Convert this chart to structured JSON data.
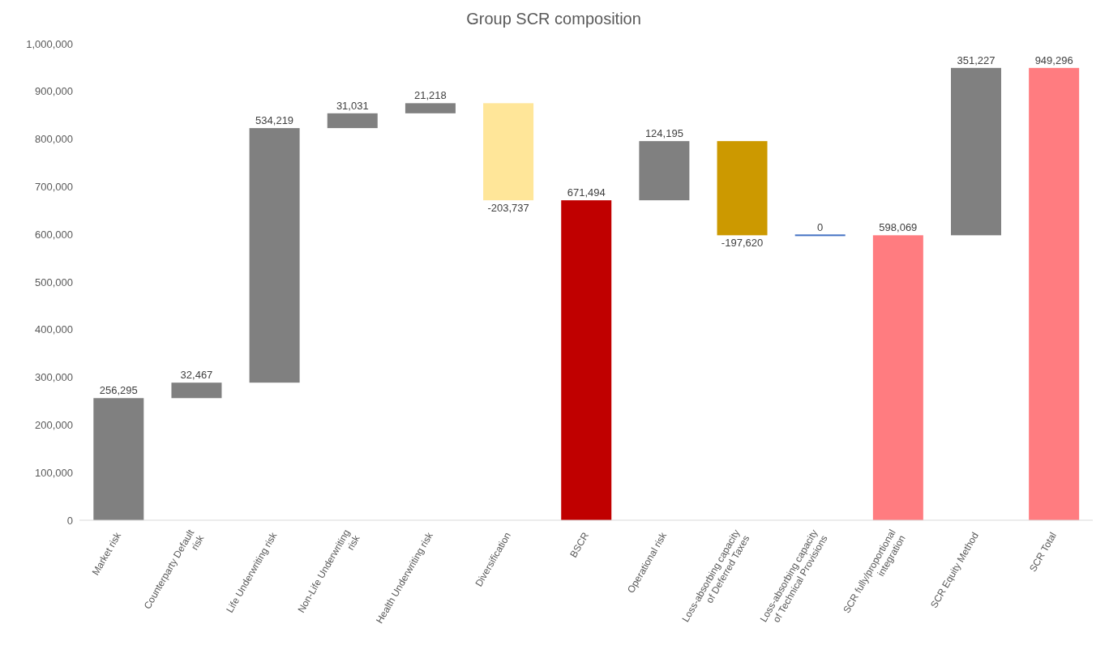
{
  "chart_data": {
    "type": "bar",
    "title": "Group SCR composition",
    "categories": [
      "Market risk",
      "Counterparty Default risk",
      "Life Underwriting risk",
      "Non-Life Underwriting risk",
      "Health Underwriting risk",
      "Diversification",
      "BSCR",
      "Operational risk",
      "Loss-absorbing capacity of Deferred Taxes",
      "Loss-absorbing capacity of Technical Provisions",
      "SCR fully/proportional integration",
      "SCR Equity Method",
      "SCR Total"
    ],
    "values": [
      256295,
      32467,
      534219,
      31031,
      21218,
      -203737,
      671494,
      124195,
      -197620,
      0,
      598069,
      351227,
      949296
    ],
    "value_labels": [
      "256,295",
      "32,467",
      "534,219",
      "31,031",
      "21,218",
      "-203,737",
      "671,494",
      "124,195",
      "-197,620",
      "0",
      "598,069",
      "351,227",
      "949,296"
    ],
    "base": [
      0,
      256295,
      288762,
      822981,
      854012,
      875230,
      0,
      671494,
      795689,
      598069,
      0,
      598069,
      0
    ],
    "colors": [
      "#808080",
      "#808080",
      "#808080",
      "#808080",
      "#808080",
      "#ffe699",
      "#c00000",
      "#808080",
      "#cc9900",
      "#4472c4",
      "#ff7c80",
      "#808080",
      "#ff7c80"
    ],
    "ylim": [
      0,
      1000000
    ],
    "yticks": [
      0,
      {
        "value": 100000,
        "label": "100,000"
      },
      {
        "value": 200000,
        "label": "200,000"
      },
      {
        "value": 300000,
        "label": "300,000"
      },
      {
        "value": 400000,
        "label": "400,000"
      },
      {
        "value": 500000,
        "label": "500,000"
      },
      {
        "value": 600000,
        "label": "600,000"
      },
      {
        "value": 700000,
        "label": "700,000"
      },
      {
        "value": 800000,
        "label": "800,000"
      },
      {
        "value": 900000,
        "label": "900,000"
      },
      {
        "value": 1000000,
        "label": "1,000,000"
      }
    ]
  }
}
